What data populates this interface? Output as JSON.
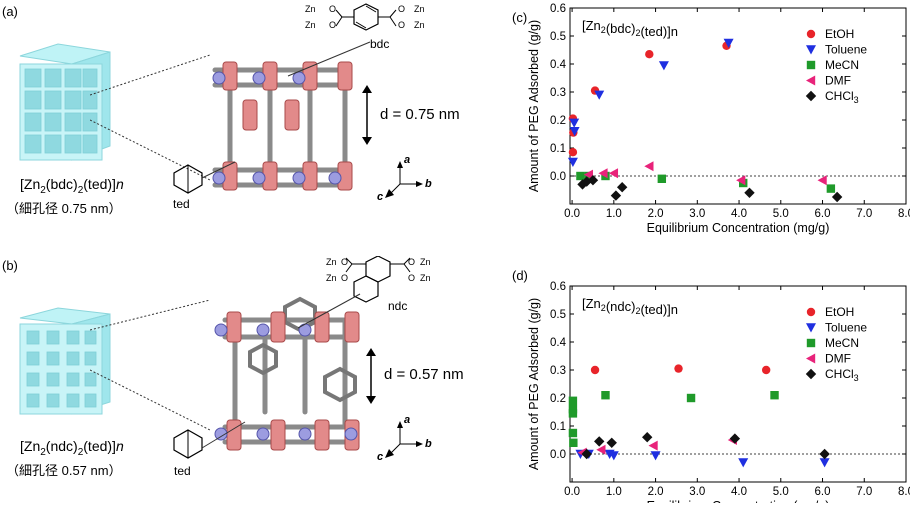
{
  "panels": {
    "a": {
      "label": "(a)",
      "formula": "[Zn2(bdc)2(ted)]n",
      "pore_note": "（細孔径 0.75 nm）",
      "ligand_label": "bdc",
      "pillar_label": "ted",
      "spacing_label": "d = 0.75 nm",
      "axis_a": "a",
      "axis_b": "b",
      "axis_c": "c",
      "zn_labels": [
        "Zn",
        "O",
        "O",
        "Zn",
        "Zn",
        "O",
        "O",
        "Zn"
      ]
    },
    "b": {
      "label": "(b)",
      "formula": "[Zn2(ndc)2(ted)]n",
      "pore_note": "（細孔径 0.57 nm）",
      "ligand_label": "ndc",
      "pillar_label": "ted",
      "spacing_label": "d = 0.57 nm",
      "axis_a": "a",
      "axis_b": "b",
      "axis_c": "c",
      "zn_labels": [
        "Zn",
        "O",
        "O",
        "Zn",
        "Zn",
        "O",
        "O",
        "Zn"
      ]
    }
  },
  "chart_data": [
    {
      "id": "c",
      "panel_label": "(c)",
      "type": "scatter",
      "title": "[Zn2(bdc)2(ted)]n",
      "xlabel": "Equilibrium Concentration (mg/g)",
      "ylabel": "Amount of PEG Adsorbed (g/g)",
      "xlim": [
        -0.05,
        8.0
      ],
      "ylim": [
        -0.1,
        0.6
      ],
      "xticks": [
        "0.0",
        "1.0",
        "2.0",
        "3.0",
        "4.0",
        "5.0",
        "6.0",
        "7.0",
        "8.0"
      ],
      "yticks": [
        "0.6",
        "0.5",
        "0.4",
        "0.3",
        "0.2",
        "0.1",
        "0.0"
      ],
      "legend_position": "top-right",
      "series": [
        {
          "name": "EtOH",
          "color": "#e8242a",
          "marker": "circle",
          "points": [
            [
              0.02,
              0.205
            ],
            [
              0.03,
              0.155
            ],
            [
              0.02,
              0.085
            ],
            [
              0.55,
              0.305
            ],
            [
              1.85,
              0.435
            ],
            [
              3.7,
              0.465
            ]
          ]
        },
        {
          "name": "Toluene",
          "color": "#1f2fe0",
          "marker": "triangle-down",
          "points": [
            [
              0.05,
              0.19
            ],
            [
              0.06,
              0.16
            ],
            [
              0.02,
              0.05
            ],
            [
              0.65,
              0.29
            ],
            [
              2.2,
              0.395
            ],
            [
              3.75,
              0.475
            ]
          ]
        },
        {
          "name": "MeCN",
          "color": "#1f9a2a",
          "marker": "square",
          "points": [
            [
              0.2,
              0.0
            ],
            [
              0.4,
              0.0
            ],
            [
              0.8,
              0.0
            ],
            [
              2.15,
              -0.01
            ],
            [
              4.1,
              -0.025
            ],
            [
              6.2,
              -0.045
            ]
          ]
        },
        {
          "name": "DMF",
          "color": "#e8237a",
          "marker": "triangle-left",
          "points": [
            [
              0.4,
              0.005
            ],
            [
              0.75,
              0.01
            ],
            [
              1.0,
              0.01
            ],
            [
              1.85,
              0.035
            ],
            [
              4.05,
              -0.015
            ],
            [
              6.0,
              -0.015
            ]
          ]
        },
        {
          "name": "CHCl3",
          "color": "#111111",
          "marker": "diamond",
          "points": [
            [
              0.25,
              -0.03
            ],
            [
              0.35,
              -0.02
            ],
            [
              0.5,
              -0.015
            ],
            [
              1.05,
              -0.07
            ],
            [
              1.2,
              -0.04
            ],
            [
              4.25,
              -0.06
            ],
            [
              6.35,
              -0.075
            ]
          ]
        }
      ]
    },
    {
      "id": "d",
      "panel_label": "(d)",
      "type": "scatter",
      "title": "[Zn2(ndc)2(ted)]n",
      "xlabel": "Equilibrium Concentration (mg/g)",
      "ylabel": "Amount of PEG Adsorbed (g/g)",
      "xlim": [
        -0.05,
        8.0
      ],
      "ylim": [
        -0.1,
        0.6
      ],
      "xticks": [
        "0.0",
        "1.0",
        "2.0",
        "3.0",
        "4.0",
        "5.0",
        "6.0",
        "7.0",
        "8.0"
      ],
      "yticks": [
        "0.6",
        "0.5",
        "0.4",
        "0.3",
        "0.2",
        "0.1",
        "0.0"
      ],
      "legend_position": "top-right",
      "series": [
        {
          "name": "EtOH",
          "color": "#e8242a",
          "marker": "circle",
          "points": [
            [
              0.55,
              0.3
            ],
            [
              2.55,
              0.305
            ],
            [
              4.65,
              0.3
            ]
          ]
        },
        {
          "name": "Toluene",
          "color": "#1f2fe0",
          "marker": "triangle-down",
          "points": [
            [
              0.2,
              0.0
            ],
            [
              0.4,
              0.0
            ],
            [
              0.9,
              0.0
            ],
            [
              1.0,
              -0.005
            ],
            [
              2.0,
              -0.005
            ],
            [
              4.1,
              -0.03
            ],
            [
              6.05,
              -0.03
            ]
          ]
        },
        {
          "name": "MeCN",
          "color": "#1f9a2a",
          "marker": "square",
          "points": [
            [
              0.02,
              0.19
            ],
            [
              0.02,
              0.16
            ],
            [
              0.02,
              0.145
            ],
            [
              0.02,
              0.075
            ],
            [
              0.03,
              0.04
            ],
            [
              0.8,
              0.21
            ],
            [
              2.85,
              0.2
            ],
            [
              4.85,
              0.21
            ]
          ]
        },
        {
          "name": "DMF",
          "color": "#e8237a",
          "marker": "triangle-left",
          "points": [
            [
              0.25,
              0.005
            ],
            [
              0.7,
              0.015
            ],
            [
              1.95,
              0.03
            ],
            [
              3.85,
              0.05
            ]
          ]
        },
        {
          "name": "CHCl3",
          "color": "#111111",
          "marker": "diamond",
          "points": [
            [
              0.35,
              0.0
            ],
            [
              0.65,
              0.045
            ],
            [
              0.95,
              0.04
            ],
            [
              1.8,
              0.06
            ],
            [
              3.9,
              0.055
            ],
            [
              6.05,
              0.0
            ]
          ]
        }
      ]
    }
  ]
}
